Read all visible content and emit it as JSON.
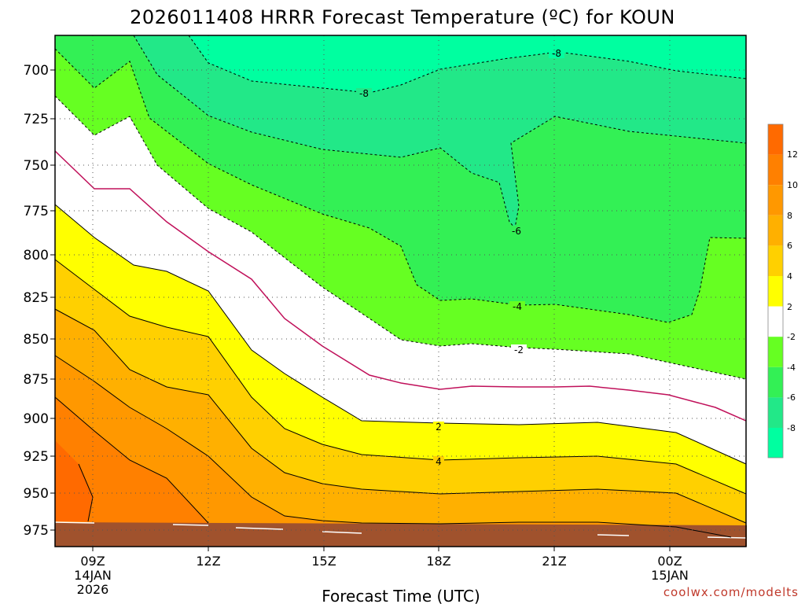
{
  "chart_data": {
    "type": "heatmap",
    "title": "2026011408 HRRR Forecast Temperature (ºC) for KOUN",
    "xlabel": "Forecast Time (UTC)",
    "y_ticks": [
      "700",
      "725",
      "750",
      "775",
      "800",
      "825",
      "850",
      "875",
      "900",
      "925",
      "950",
      "975"
    ],
    "x_ticks": [
      {
        "line1": "09Z",
        "line2": "14JAN",
        "line3": "2026"
      },
      {
        "line1": "12Z",
        "line2": "",
        "line3": ""
      },
      {
        "line1": "15Z",
        "line2": "",
        "line3": ""
      },
      {
        "line1": "18Z",
        "line2": "",
        "line3": ""
      },
      {
        "line1": "21Z",
        "line2": "",
        "line3": ""
      },
      {
        "line1": "00Z",
        "line2": "15JAN",
        "line3": ""
      }
    ],
    "colorbar_labels": [
      "12",
      "10",
      "8",
      "6",
      "4",
      "2",
      "-2",
      "-4",
      "-6",
      "-8"
    ],
    "contour_labels": [
      "-8",
      "-8",
      "-6",
      "-4",
      "-2",
      "2",
      "4"
    ],
    "credit": "coolwx.com/modelts",
    "colors": {
      "ge12": "#ff6a00",
      "10to12": "#ff8000",
      "8to10": "#ff9800",
      "6to8": "#ffb000",
      "4to6": "#ffd000",
      "2to4": "#ffff00",
      "m2to2": "#ffffff",
      "m4tom2": "#66ff22",
      "m6tom4": "#33f055",
      "m8tom6": "#22e888",
      "lem8": "#00ffa0",
      "ground": "#a0522d",
      "zero_line": "#c0105a"
    }
  }
}
